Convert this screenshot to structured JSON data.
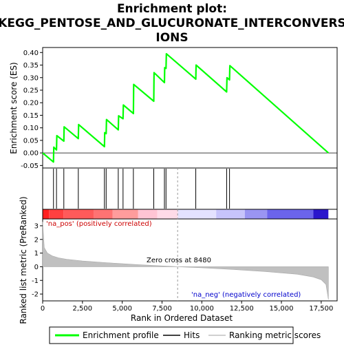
{
  "chart_data": {
    "type": "line",
    "title_lines": [
      "Enrichment plot:",
      "KEGG_PENTOSE_AND_GLUCURONATE_INTERCONVERS",
      "IONS"
    ],
    "es_panel": {
      "ylabel": "Enrichment score (ES)",
      "ylim": [
        -0.06,
        0.42
      ],
      "yticks": [
        "0.40",
        "0.35",
        "0.30",
        "0.25",
        "0.20",
        "0.15",
        "0.10",
        "0.05",
        "0.00",
        "-0.05"
      ],
      "ytick_values": [
        0.4,
        0.35,
        0.3,
        0.25,
        0.2,
        0.15,
        0.1,
        0.05,
        0.0,
        -0.05
      ],
      "series": [
        {
          "name": "Enrichment profile",
          "color": "#00ff00",
          "x": [
            0,
            680,
            700,
            870,
            890,
            1330,
            1350,
            2240,
            2260,
            3880,
            3900,
            3990,
            4010,
            4750,
            4770,
            5050,
            5070,
            5700,
            5720,
            6980,
            7000,
            7650,
            7670,
            7750,
            7770,
            9620,
            9640,
            11560,
            11580,
            11740,
            11760,
            17950
          ],
          "y": [
            0.0,
            -0.036,
            0.023,
            0.012,
            0.069,
            0.047,
            0.104,
            0.057,
            0.113,
            0.025,
            0.081,
            0.077,
            0.133,
            0.092,
            0.148,
            0.136,
            0.191,
            0.157,
            0.273,
            0.206,
            0.32,
            0.28,
            0.34,
            0.337,
            0.395,
            0.294,
            0.35,
            0.243,
            0.3,
            0.291,
            0.348,
            0.0
          ]
        }
      ]
    },
    "hits": [
      680,
      870,
      1330,
      2240,
      3880,
      3990,
      4750,
      5050,
      5700,
      6980,
      7650,
      7750,
      9620,
      11560,
      11740
    ],
    "rank_panel": {
      "ylabel": "Ranked list metric (PreRanked)",
      "ylim": [
        -2.5,
        3.5
      ],
      "yticks": [
        "3",
        "2",
        "1",
        "0",
        "-1",
        "-2"
      ],
      "ytick_values": [
        3,
        2,
        1,
        0,
        -1,
        -2
      ],
      "xlabel": "Rank in Ordered Dataset",
      "xlim": [
        0,
        18500
      ],
      "xticks": [
        "0",
        "2,500",
        "5,000",
        "7,500",
        "10,000",
        "12,500",
        "15,000",
        "17,500"
      ],
      "xtick_values": [
        0,
        2500,
        5000,
        7500,
        10000,
        12500,
        15000,
        17500
      ],
      "zero_cross_label": "Zero cross at 8480",
      "zero_cross": 8480,
      "pos_label": "'na_pos' (positively correlated)",
      "neg_label": "'na_neg' (negatively correlated)",
      "metric_profile": {
        "x": [
          0,
          100,
          300,
          600,
          1000,
          1500,
          2500,
          4000,
          6000,
          8480,
          10000,
          12000,
          14000,
          16000,
          17000,
          17500,
          17800,
          17950
        ],
        "y": [
          3.3,
          1.4,
          1.0,
          0.8,
          0.65,
          0.55,
          0.42,
          0.3,
          0.15,
          0.0,
          -0.08,
          -0.2,
          -0.35,
          -0.55,
          -0.75,
          -0.95,
          -1.3,
          -2.4
        ]
      },
      "color": "#c0c0c0"
    },
    "heat_bar": {
      "segments": [
        {
          "from": 0,
          "to": 400,
          "color": "#ff1f1f"
        },
        {
          "from": 400,
          "to": 1300,
          "color": "#ff4040"
        },
        {
          "from": 1300,
          "to": 3200,
          "color": "#ff5a5a"
        },
        {
          "from": 3200,
          "to": 4400,
          "color": "#ff7373"
        },
        {
          "from": 4400,
          "to": 6000,
          "color": "#ff9c9c"
        },
        {
          "from": 6000,
          "to": 7200,
          "color": "#ffc4d4"
        },
        {
          "from": 7200,
          "to": 8500,
          "color": "#ffdbe8"
        },
        {
          "from": 8500,
          "to": 10900,
          "color": "#e4e2ff"
        },
        {
          "from": 10900,
          "to": 12700,
          "color": "#c7c4fb"
        },
        {
          "from": 12700,
          "to": 14100,
          "color": "#9a95f2"
        },
        {
          "from": 14100,
          "to": 17000,
          "color": "#6b64eb"
        },
        {
          "from": 17000,
          "to": 17950,
          "color": "#2a16cc"
        }
      ]
    },
    "legend": [
      {
        "label": "Enrichment profile",
        "color": "#00ff00"
      },
      {
        "label": "Hits",
        "color": "#000000"
      },
      {
        "label": "Ranking metric scores",
        "color": "#c0c0c0"
      }
    ]
  }
}
